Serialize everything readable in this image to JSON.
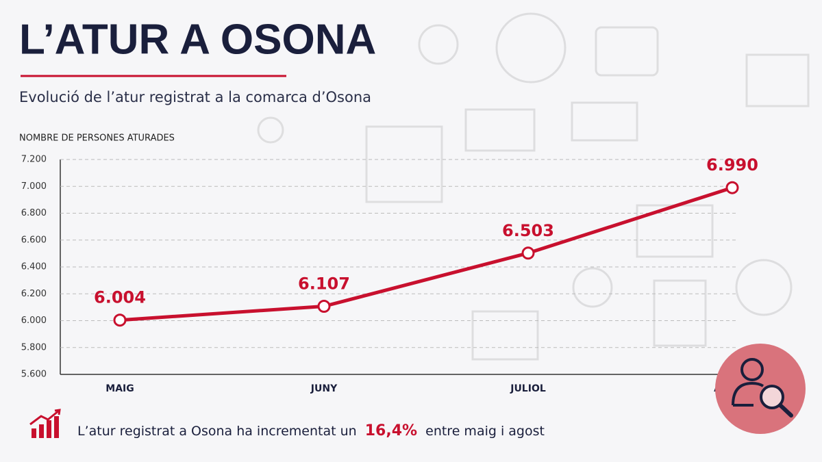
{
  "chart_data": {
    "type": "line",
    "title": "L’ATUR A OSONA",
    "subtitle": "Evolució de l’atur registrat a la comarca d’Osona",
    "y_label": "NOMBRE DE PERSONES ATURADES",
    "categories": [
      "MAIG",
      "JUNY",
      "JULIOL",
      "AGOST"
    ],
    "values": [
      6004,
      6107,
      6503,
      6990
    ],
    "value_labels": [
      "6.004",
      "6.107",
      "6.503",
      "6.990"
    ],
    "color": "#c8102e",
    "ylim": [
      5600,
      7200
    ],
    "yticks": [
      {
        "value": 5600,
        "label": "5.600"
      },
      {
        "value": 5800,
        "label": "5.800"
      },
      {
        "value": 6000,
        "label": "6.000"
      },
      {
        "value": 6200,
        "label": "6.200"
      },
      {
        "value": 6400,
        "label": "6.400"
      },
      {
        "value": 6600,
        "label": "6.600"
      },
      {
        "value": 6800,
        "label": "6.800"
      },
      {
        "value": 7000,
        "label": "7.000"
      },
      {
        "value": 7200,
        "label": "7.200"
      }
    ],
    "grid": true,
    "annotation": {
      "before": "L’atur registrat a Osona ha incrementat un",
      "highlight": "16,4%",
      "after": "entre maig i agost"
    }
  }
}
